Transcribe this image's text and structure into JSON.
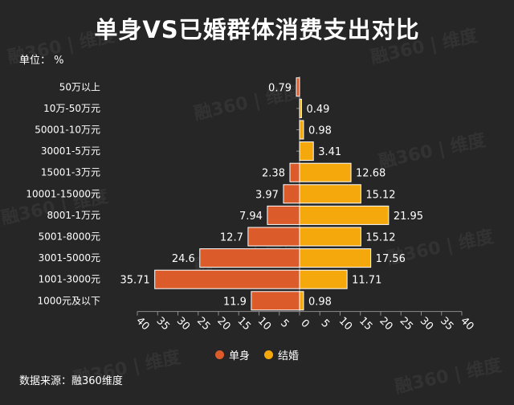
{
  "title": "单身VS已婚群体消费支出对比",
  "unit_label": "单位： %",
  "source": "数据来源：融360维度",
  "watermark": "融360 | 维度",
  "colors": {
    "background": "#262626",
    "single": "#db5b2b",
    "married": "#f4a80c",
    "bar_stroke": "#ffffff",
    "axis": "#8c8c8c",
    "text": "#ffffff"
  },
  "chart_data": {
    "type": "bar",
    "orientation": "horizontal-butterfly",
    "title": "单身VS已婚群体消费支出对比",
    "unit": "%",
    "categories": [
      "50万以上",
      "10万-50万元",
      "50001-10万元",
      "30001-5万元",
      "15001-3万元",
      "10001-15000元",
      "8001-1万元",
      "5001-8000元",
      "3001-5000元",
      "1001-3000元",
      "1000元及以下"
    ],
    "series": [
      {
        "name": "单身",
        "color": "#db5b2b",
        "direction": "left",
        "values": [
          0.79,
          null,
          null,
          null,
          2.38,
          3.97,
          7.94,
          12.7,
          24.6,
          35.71,
          11.9
        ]
      },
      {
        "name": "结婚",
        "color": "#f4a80c",
        "direction": "right",
        "values": [
          null,
          0.49,
          0.98,
          3.41,
          12.68,
          15.12,
          21.95,
          15.12,
          17.56,
          11.71,
          0.98
        ]
      }
    ],
    "x_ticks": [
      "40",
      "35",
      "30",
      "25",
      "20",
      "15",
      "10",
      "5",
      "0",
      "5",
      "10",
      "15",
      "20",
      "25",
      "30",
      "35",
      "40"
    ],
    "xlim": [
      -40,
      40
    ],
    "grid": false,
    "legend": "bottom-center"
  }
}
